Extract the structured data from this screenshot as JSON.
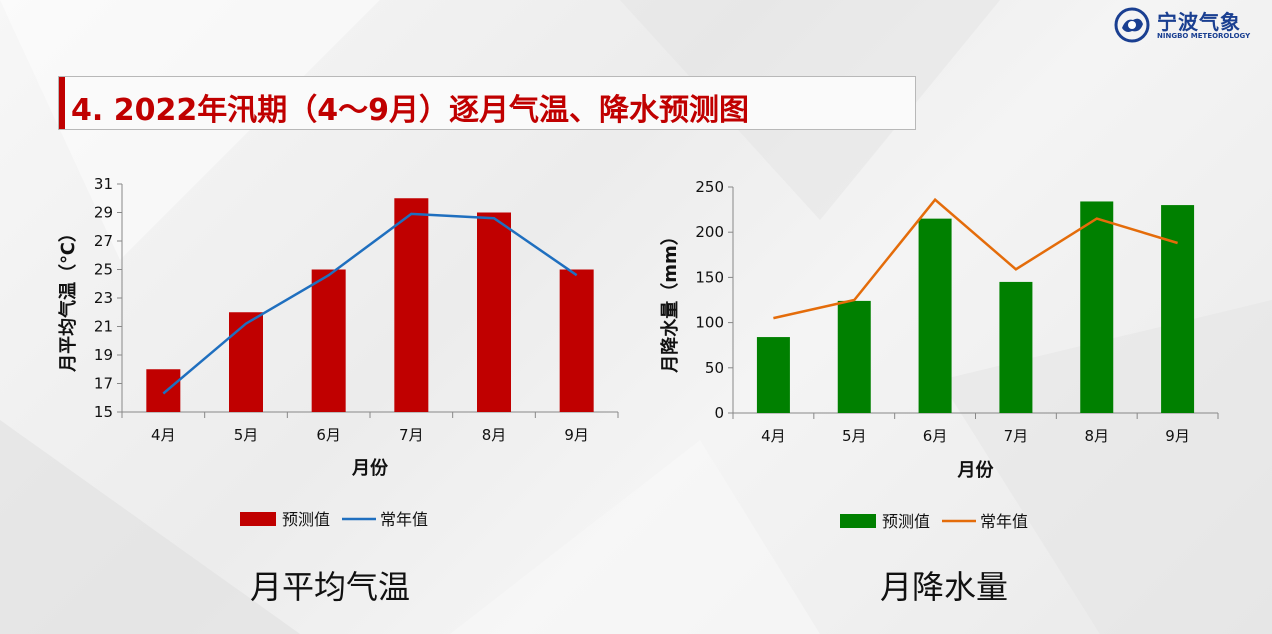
{
  "header": {
    "title": "4. 2022年汛期（4～9月）逐月气温、降水预测图",
    "logo_cn": "宁波气象",
    "logo_en": "NINGBO METEOROLOGY"
  },
  "captions": [
    "月平均气温",
    "月降水量"
  ],
  "chart_data": [
    {
      "type": "bar",
      "categories": [
        "4月",
        "5月",
        "6月",
        "7月",
        "8月",
        "9月"
      ],
      "series": [
        {
          "name": "预测值",
          "kind": "bar",
          "color": "#c00000",
          "values": [
            18,
            22,
            25,
            30,
            29,
            25
          ]
        },
        {
          "name": "常年值",
          "kind": "line",
          "color": "#1f6fbf",
          "values": [
            16.3,
            21.2,
            24.6,
            28.9,
            28.6,
            24.6
          ]
        }
      ],
      "xlabel": "月份",
      "ylabel": "月平均气温（℃）",
      "ylim": [
        15,
        31
      ],
      "yticks": [
        15,
        17,
        19,
        21,
        23,
        25,
        27,
        29,
        31
      ],
      "legend": "bottom"
    },
    {
      "type": "bar",
      "categories": [
        "4月",
        "5月",
        "6月",
        "7月",
        "8月",
        "9月"
      ],
      "series": [
        {
          "name": "预测值",
          "kind": "bar",
          "color": "#008000",
          "values": [
            84,
            124,
            215,
            145,
            234,
            230
          ]
        },
        {
          "name": "常年值",
          "kind": "line",
          "color": "#e46c0a",
          "values": [
            105,
            125,
            236,
            159,
            215,
            188
          ]
        }
      ],
      "xlabel": "月份",
      "ylabel": "月降水量（mm）",
      "ylim": [
        0,
        250
      ],
      "yticks": [
        0,
        50,
        100,
        150,
        200,
        250
      ],
      "legend": "bottom"
    }
  ]
}
